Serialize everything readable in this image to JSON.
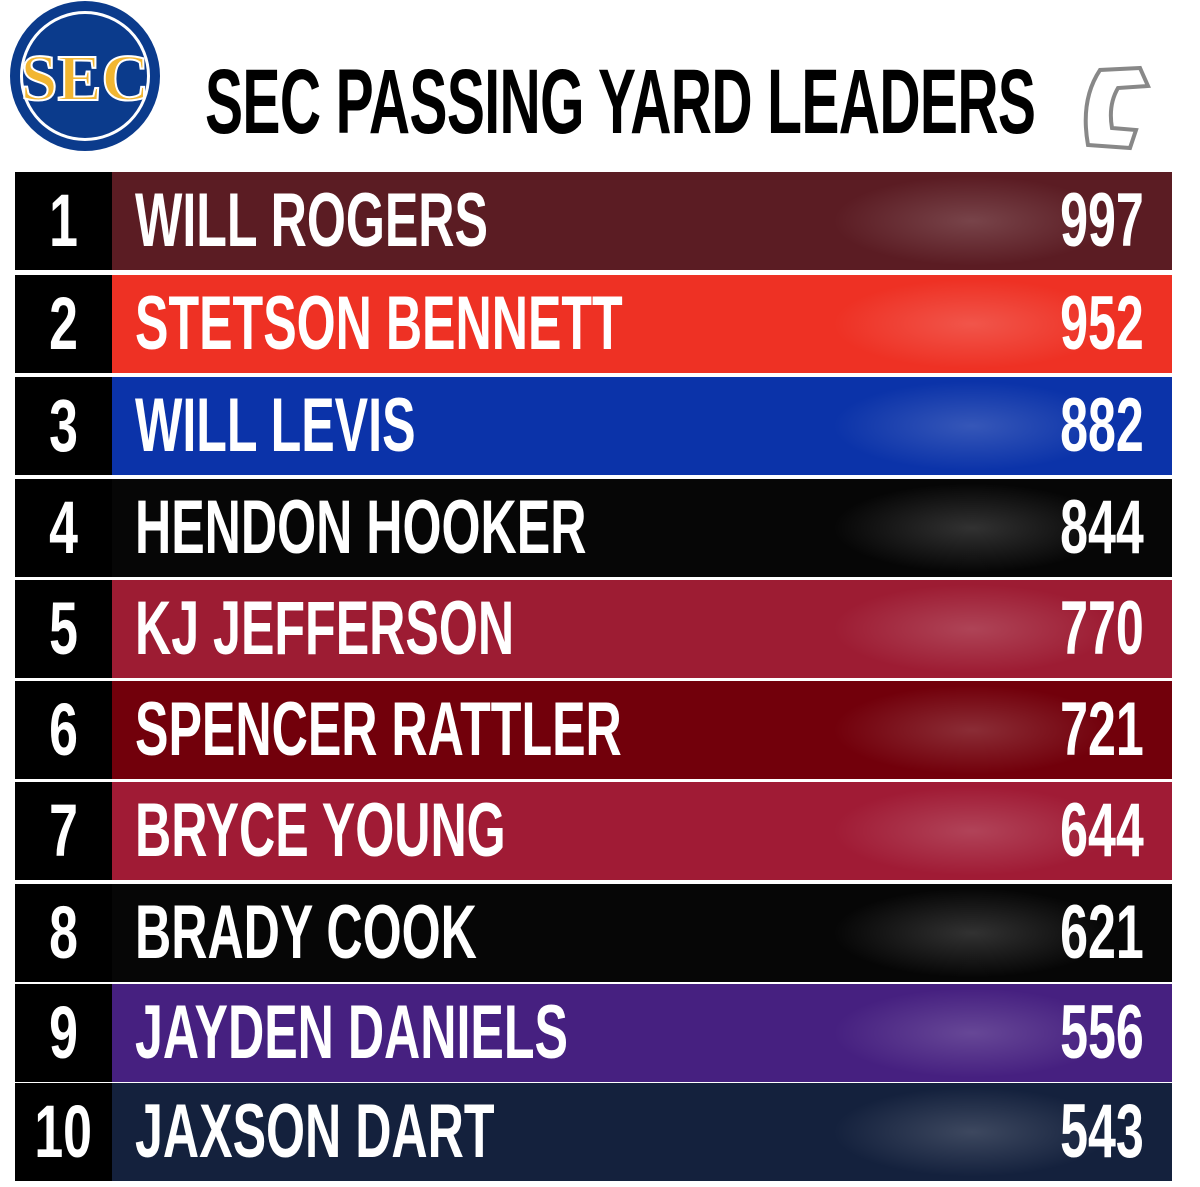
{
  "header": {
    "logo_text": "SEC",
    "title": "SEC PASSING YARD LEADERS"
  },
  "table": {
    "rows": [
      {
        "rank": 1,
        "name": "WILL ROGERS",
        "yards": 997,
        "color": "#5b1c23"
      },
      {
        "rank": 2,
        "name": "STETSON BENNETT",
        "yards": 952,
        "color": "#ee3124"
      },
      {
        "rank": 3,
        "name": "WILL LEVIS",
        "yards": 882,
        "color": "#0b33a9"
      },
      {
        "rank": 4,
        "name": "HENDON HOOKER",
        "yards": 844,
        "color": "#060606"
      },
      {
        "rank": 5,
        "name": "KJ JEFFERSON",
        "yards": 770,
        "color": "#9d1c33"
      },
      {
        "rank": 6,
        "name": "SPENCER RATTLER",
        "yards": 721,
        "color": "#72000b"
      },
      {
        "rank": 7,
        "name": "BRYCE YOUNG",
        "yards": 644,
        "color": "#a01b35"
      },
      {
        "rank": 8,
        "name": "BRADY COOK",
        "yards": 621,
        "color": "#060606"
      },
      {
        "rank": 9,
        "name": "JAYDEN DANIELS",
        "yards": 556,
        "color": "#462080"
      },
      {
        "rank": 10,
        "name": "JAXSON DART",
        "yards": 543,
        "color": "#14213d"
      }
    ]
  }
}
